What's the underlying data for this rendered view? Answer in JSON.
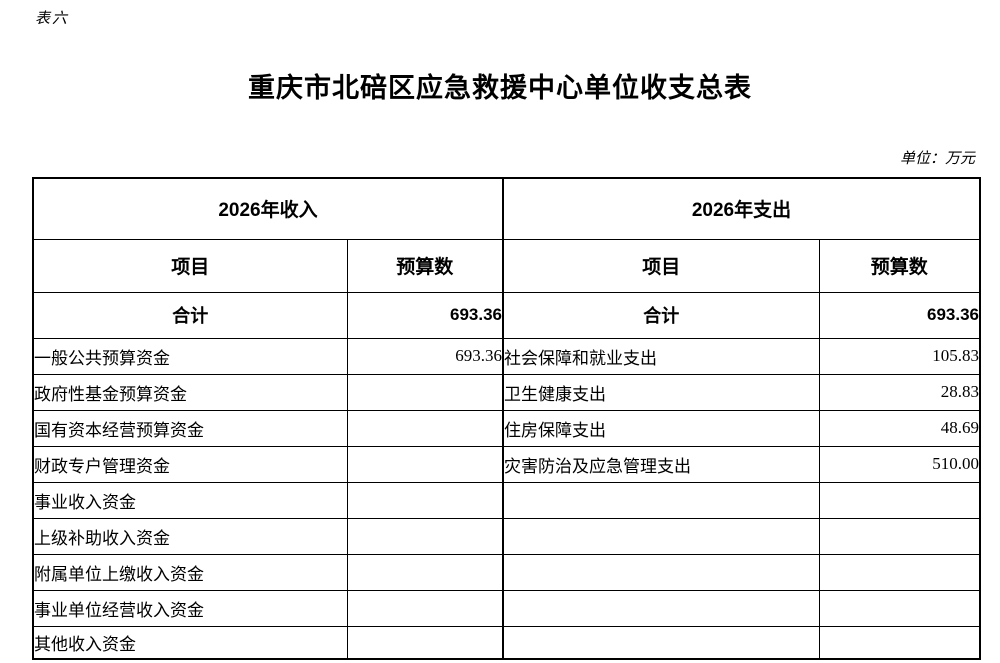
{
  "page": {
    "table_label": "表六",
    "title": "重庆市北碚区应急救援中心单位收支总表",
    "unit_note": "单位：万元"
  },
  "table": {
    "header_groups": {
      "income": "2026年收入",
      "expense": "2026年支出"
    },
    "columns": [
      "项目",
      "预算数",
      "项目",
      "预算数"
    ],
    "total_row": {
      "income_item": "合计",
      "income_value": "693.36",
      "expense_item": "合计",
      "expense_value": "693.36"
    },
    "rows": [
      {
        "income_item": "一般公共预算资金",
        "income_value": "693.36",
        "expense_item": "社会保障和就业支出",
        "expense_value": "105.83"
      },
      {
        "income_item": "政府性基金预算资金",
        "income_value": "",
        "expense_item": "卫生健康支出",
        "expense_value": "28.83"
      },
      {
        "income_item": "国有资本经营预算资金",
        "income_value": "",
        "expense_item": "住房保障支出",
        "expense_value": "48.69"
      },
      {
        "income_item": "财政专户管理资金",
        "income_value": "",
        "expense_item": "灾害防治及应急管理支出",
        "expense_value": "510.00"
      },
      {
        "income_item": "事业收入资金",
        "income_value": "",
        "expense_item": "",
        "expense_value": ""
      },
      {
        "income_item": "上级补助收入资金",
        "income_value": "",
        "expense_item": "",
        "expense_value": ""
      },
      {
        "income_item": "附属单位上缴收入资金",
        "income_value": "",
        "expense_item": "",
        "expense_value": ""
      },
      {
        "income_item": "事业单位经营收入资金",
        "income_value": "",
        "expense_item": "",
        "expense_value": ""
      },
      {
        "income_item": "其他收入资金",
        "income_value": "",
        "expense_item": "",
        "expense_value": ""
      }
    ]
  }
}
